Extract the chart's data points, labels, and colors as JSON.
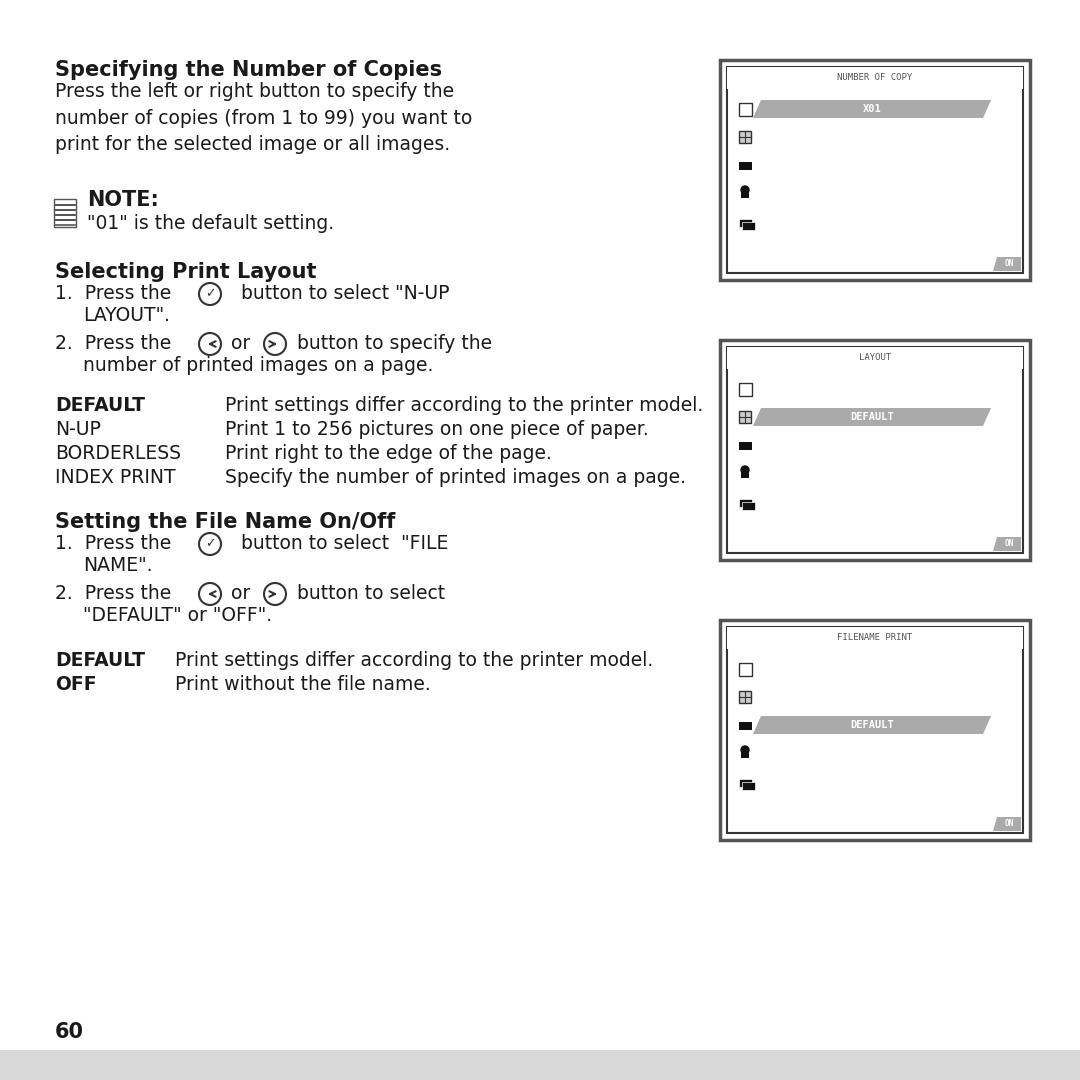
{
  "bg_color": "#f0f0f0",
  "page_bg": "#ffffff",
  "page_number": "60",
  "section1_title": "Specifying the Number of Copies",
  "section1_body": "Press the left or right button to specify the\nnumber of copies (from 1 to 99) you want to\nprint for the selected image or all images.",
  "note_title": "NOTE:",
  "note_body": "\"01\" is the default setting.",
  "section2_title": "Selecting Print Layout",
  "section2_step1": "1.  Press the ⓥ button to select “N-UP\n    LAYOUT”.",
  "section2_step2": "2.  Press the ⓜ or ⓝ button to specify the\n    number of printed images on a page.",
  "table2_rows": [
    [
      "DEFAULT",
      "Print settings differ according to the printer model."
    ],
    [
      "N-UP",
      "Print 1 to 256 pictures on one piece of paper."
    ],
    [
      "BORDERLESS",
      "Print right to the edge of the page."
    ],
    [
      "INDEX PRINT",
      "Specify the number of printed images on a page."
    ]
  ],
  "section3_title": "Setting the File Name On/Off",
  "section3_step1": "1.  Press the ⓥ button to select “FILE\n    NAME”.",
  "section3_step2": "2.  Press the ⓜ or ⓝ button to select\n    “DEFAULT” or “OFF”.",
  "table3_rows": [
    [
      "DEFAULT",
      "Print settings differ according to the printer model."
    ],
    [
      "OFF",
      "Print without the file name."
    ]
  ],
  "screen1_title": "NUMBER OF COPY",
  "screen1_label": "X01",
  "screen2_title": "LAYOUT",
  "screen2_label": "DEFAULT",
  "screen3_title": "FILENAME PRINT",
  "screen3_label": "DEFAULT"
}
